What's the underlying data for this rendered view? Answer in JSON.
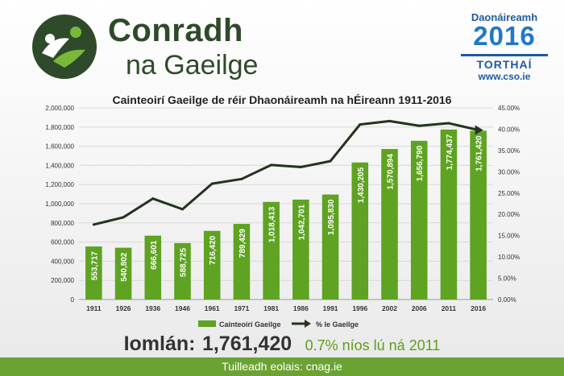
{
  "header": {
    "brand_line1": "Conradh",
    "brand_line2": "na Gaeilge",
    "census_line1": "Daonáireamh",
    "census_year": "2016",
    "census_results": "TORTHAÍ",
    "census_url": "www.cso.ie"
  },
  "summary": {
    "label": "Iomlán:",
    "total": "1,761,420",
    "change": "0.7% níos lú ná 2011"
  },
  "footer": {
    "text": "Tuilleadh eolais: cnag.ie"
  },
  "colors": {
    "bar": "#5ea321",
    "line": "#24331f",
    "brand": "#2f4a2a",
    "footer": "#6aa332"
  },
  "chart_data": {
    "type": "bar",
    "title": "Cainteoirí Gaeilge de réir Dhaonáireamh na hÉireann 1911-2016",
    "categories": [
      "1911",
      "1926",
      "1936",
      "1946",
      "1961",
      "1971",
      "1981",
      "1986",
      "1991",
      "1996",
      "2002",
      "2006",
      "2011",
      "2016"
    ],
    "series": [
      {
        "name": "Cainteoirí Gaeilge",
        "type": "bar",
        "axis": "left",
        "values": [
          553717,
          540802,
          666601,
          588725,
          716420,
          789429,
          1018413,
          1042701,
          1095830,
          1430205,
          1570894,
          1656790,
          1774437,
          1761420
        ],
        "labels": [
          "553,717",
          "540,802",
          "666,601",
          "588,725",
          "716,420",
          "789,429",
          "1,018,413",
          "1,042,701",
          "1,095,830",
          "1,430,205",
          "1,570,894",
          "1,656,790",
          "1,774,437",
          "1,761,420"
        ]
      },
      {
        "name": "% le Gaeilge",
        "type": "line",
        "axis": "right",
        "values": [
          17.6,
          19.3,
          23.7,
          21.2,
          27.2,
          28.3,
          31.6,
          31.1,
          32.5,
          41.1,
          41.9,
          40.8,
          41.4,
          39.8
        ]
      }
    ],
    "y_left": {
      "min": 0,
      "max": 2000000,
      "ticks": [
        0,
        200000,
        400000,
        600000,
        800000,
        1000000,
        1200000,
        1400000,
        1600000,
        1800000,
        2000000
      ],
      "tick_labels": [
        "0",
        "200,000",
        "400,000",
        "600,000",
        "800,000",
        "1,000,000",
        "1,200,000",
        "1,400,000",
        "1,600,000",
        "1,800,000",
        "2,000,000"
      ]
    },
    "y_right": {
      "min": 0,
      "max": 45,
      "ticks": [
        0,
        5,
        10,
        15,
        20,
        25,
        30,
        35,
        40,
        45
      ],
      "tick_labels": [
        "0.00%",
        "5.00%",
        "10.00%",
        "15.00%",
        "20.00%",
        "25.00%",
        "30.00%",
        "35.00%",
        "40.00%",
        "45.00%"
      ]
    },
    "grid": true,
    "legend": "bottom-center"
  }
}
